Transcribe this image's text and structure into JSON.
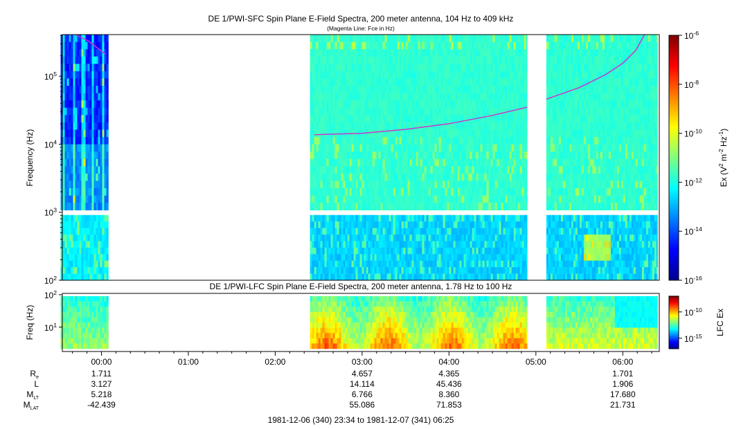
{
  "chart_data": [
    {
      "type": "heatmap",
      "panel": "SFC",
      "title": "DE 1/PWI-SFC  Spin Plane E-Field Spectra, 200 meter antenna, 104 Hz to 409 kHz",
      "subtitle": "(Magenta Line: Fce in Hz)",
      "ylabel": "Frequency (Hz)",
      "y_scale": "log",
      "ylim": [
        100,
        409000
      ],
      "y_ticks": [
        {
          "value": 100,
          "base": "10",
          "exp": "2"
        },
        {
          "value": 1000,
          "base": "10",
          "exp": "3"
        },
        {
          "value": 10000,
          "base": "10",
          "exp": "4"
        },
        {
          "value": 100000,
          "base": "10",
          "exp": "5"
        }
      ],
      "colorbar": {
        "label_parts": [
          "Ex (V",
          "2",
          " m",
          "-2",
          " Hz",
          "-1",
          ")"
        ],
        "scale": "log",
        "range": [
          1e-16,
          1e-06
        ],
        "ticks": [
          {
            "value": 1e-06,
            "base": "10",
            "exp": "-6"
          },
          {
            "value": 1e-08,
            "base": "10",
            "exp": "-8"
          },
          {
            "value": 1e-10,
            "base": "10",
            "exp": "-10"
          },
          {
            "value": 1e-12,
            "base": "10",
            "exp": "-12"
          },
          {
            "value": 1e-14,
            "base": "10",
            "exp": "-14"
          },
          {
            "value": 1e-16,
            "base": "10",
            "exp": "-16"
          }
        ]
      },
      "data_intervals_hours": [
        [
          -0.47,
          0.08
        ],
        [
          2.4,
          4.9
        ],
        [
          5.12,
          6.4
        ]
      ],
      "band_split_hz": 1000,
      "fce_line_color": "#cc33cc",
      "fce_line_segments": [
        {
          "t": [
            -0.3,
            -0.15,
            0.05
          ],
          "hz": [
            409000,
            330000,
            210000
          ]
        },
        {
          "t": [
            2.45,
            3.0,
            3.5,
            4.0,
            4.5,
            4.9
          ],
          "hz": [
            13800,
            14500,
            16500,
            20000,
            26500,
            35000
          ]
        },
        {
          "t": [
            5.12,
            5.5,
            5.8,
            6.0,
            6.15,
            6.25
          ],
          "hz": [
            46000,
            68000,
            105000,
            155000,
            240000,
            409000
          ]
        }
      ]
    },
    {
      "type": "heatmap",
      "panel": "LFC",
      "title": "DE 1/PWI-LFC  Spin Plane E-Field Spectra, 200 meter antenna, 1.78 Hz to 100 Hz",
      "ylabel": "Freq (Hz)",
      "y_scale": "log",
      "ylim": [
        1.78,
        110
      ],
      "y_ticks": [
        {
          "value": 10,
          "base": "10",
          "exp": "1"
        },
        {
          "value": 100,
          "base": "10",
          "exp": "2"
        }
      ],
      "colorbar": {
        "label": "LFC Ex",
        "scale": "log",
        "range": [
          1e-17,
          1e-07
        ],
        "ticks": [
          {
            "value": 1e-10,
            "base": "10",
            "exp": "-10"
          },
          {
            "value": 1e-15,
            "base": "10",
            "exp": "-15"
          }
        ]
      },
      "data_intervals_hours": [
        [
          -0.47,
          0.08
        ],
        [
          2.4,
          4.9
        ],
        [
          5.12,
          6.4
        ]
      ]
    }
  ],
  "time_axis": {
    "range_hours": [
      -0.45,
      6.42
    ],
    "ticks": [
      {
        "hour": 0,
        "label": "00:00"
      },
      {
        "hour": 1,
        "label": "01:00"
      },
      {
        "hour": 2,
        "label": "02:00"
      },
      {
        "hour": 3,
        "label": "03:00"
      },
      {
        "hour": 4,
        "label": "04:00"
      },
      {
        "hour": 5,
        "label": "05:00"
      },
      {
        "hour": 6,
        "label": "06:00"
      }
    ]
  },
  "ephemeris": {
    "rows": [
      {
        "label": "R",
        "sub": "e",
        "values": [
          "1.711",
          "4.657",
          "4.365",
          "1.701"
        ]
      },
      {
        "label": "L",
        "sub": "",
        "values": [
          "3.127",
          "14.114",
          "45.436",
          "1.906"
        ]
      },
      {
        "label": "M",
        "sub": "LT",
        "values": [
          "5.218",
          "6.766",
          "8.360",
          "17.680"
        ]
      },
      {
        "label": "M",
        "sub": "LAT",
        "values": [
          "-42.439",
          "55.086",
          "71.853",
          "21.731"
        ]
      }
    ],
    "at_hours": [
      0,
      3,
      4,
      6
    ]
  },
  "time_range_label": "1981-12-06 (340) 23:34 to 1981-12-07 (341) 06:25"
}
